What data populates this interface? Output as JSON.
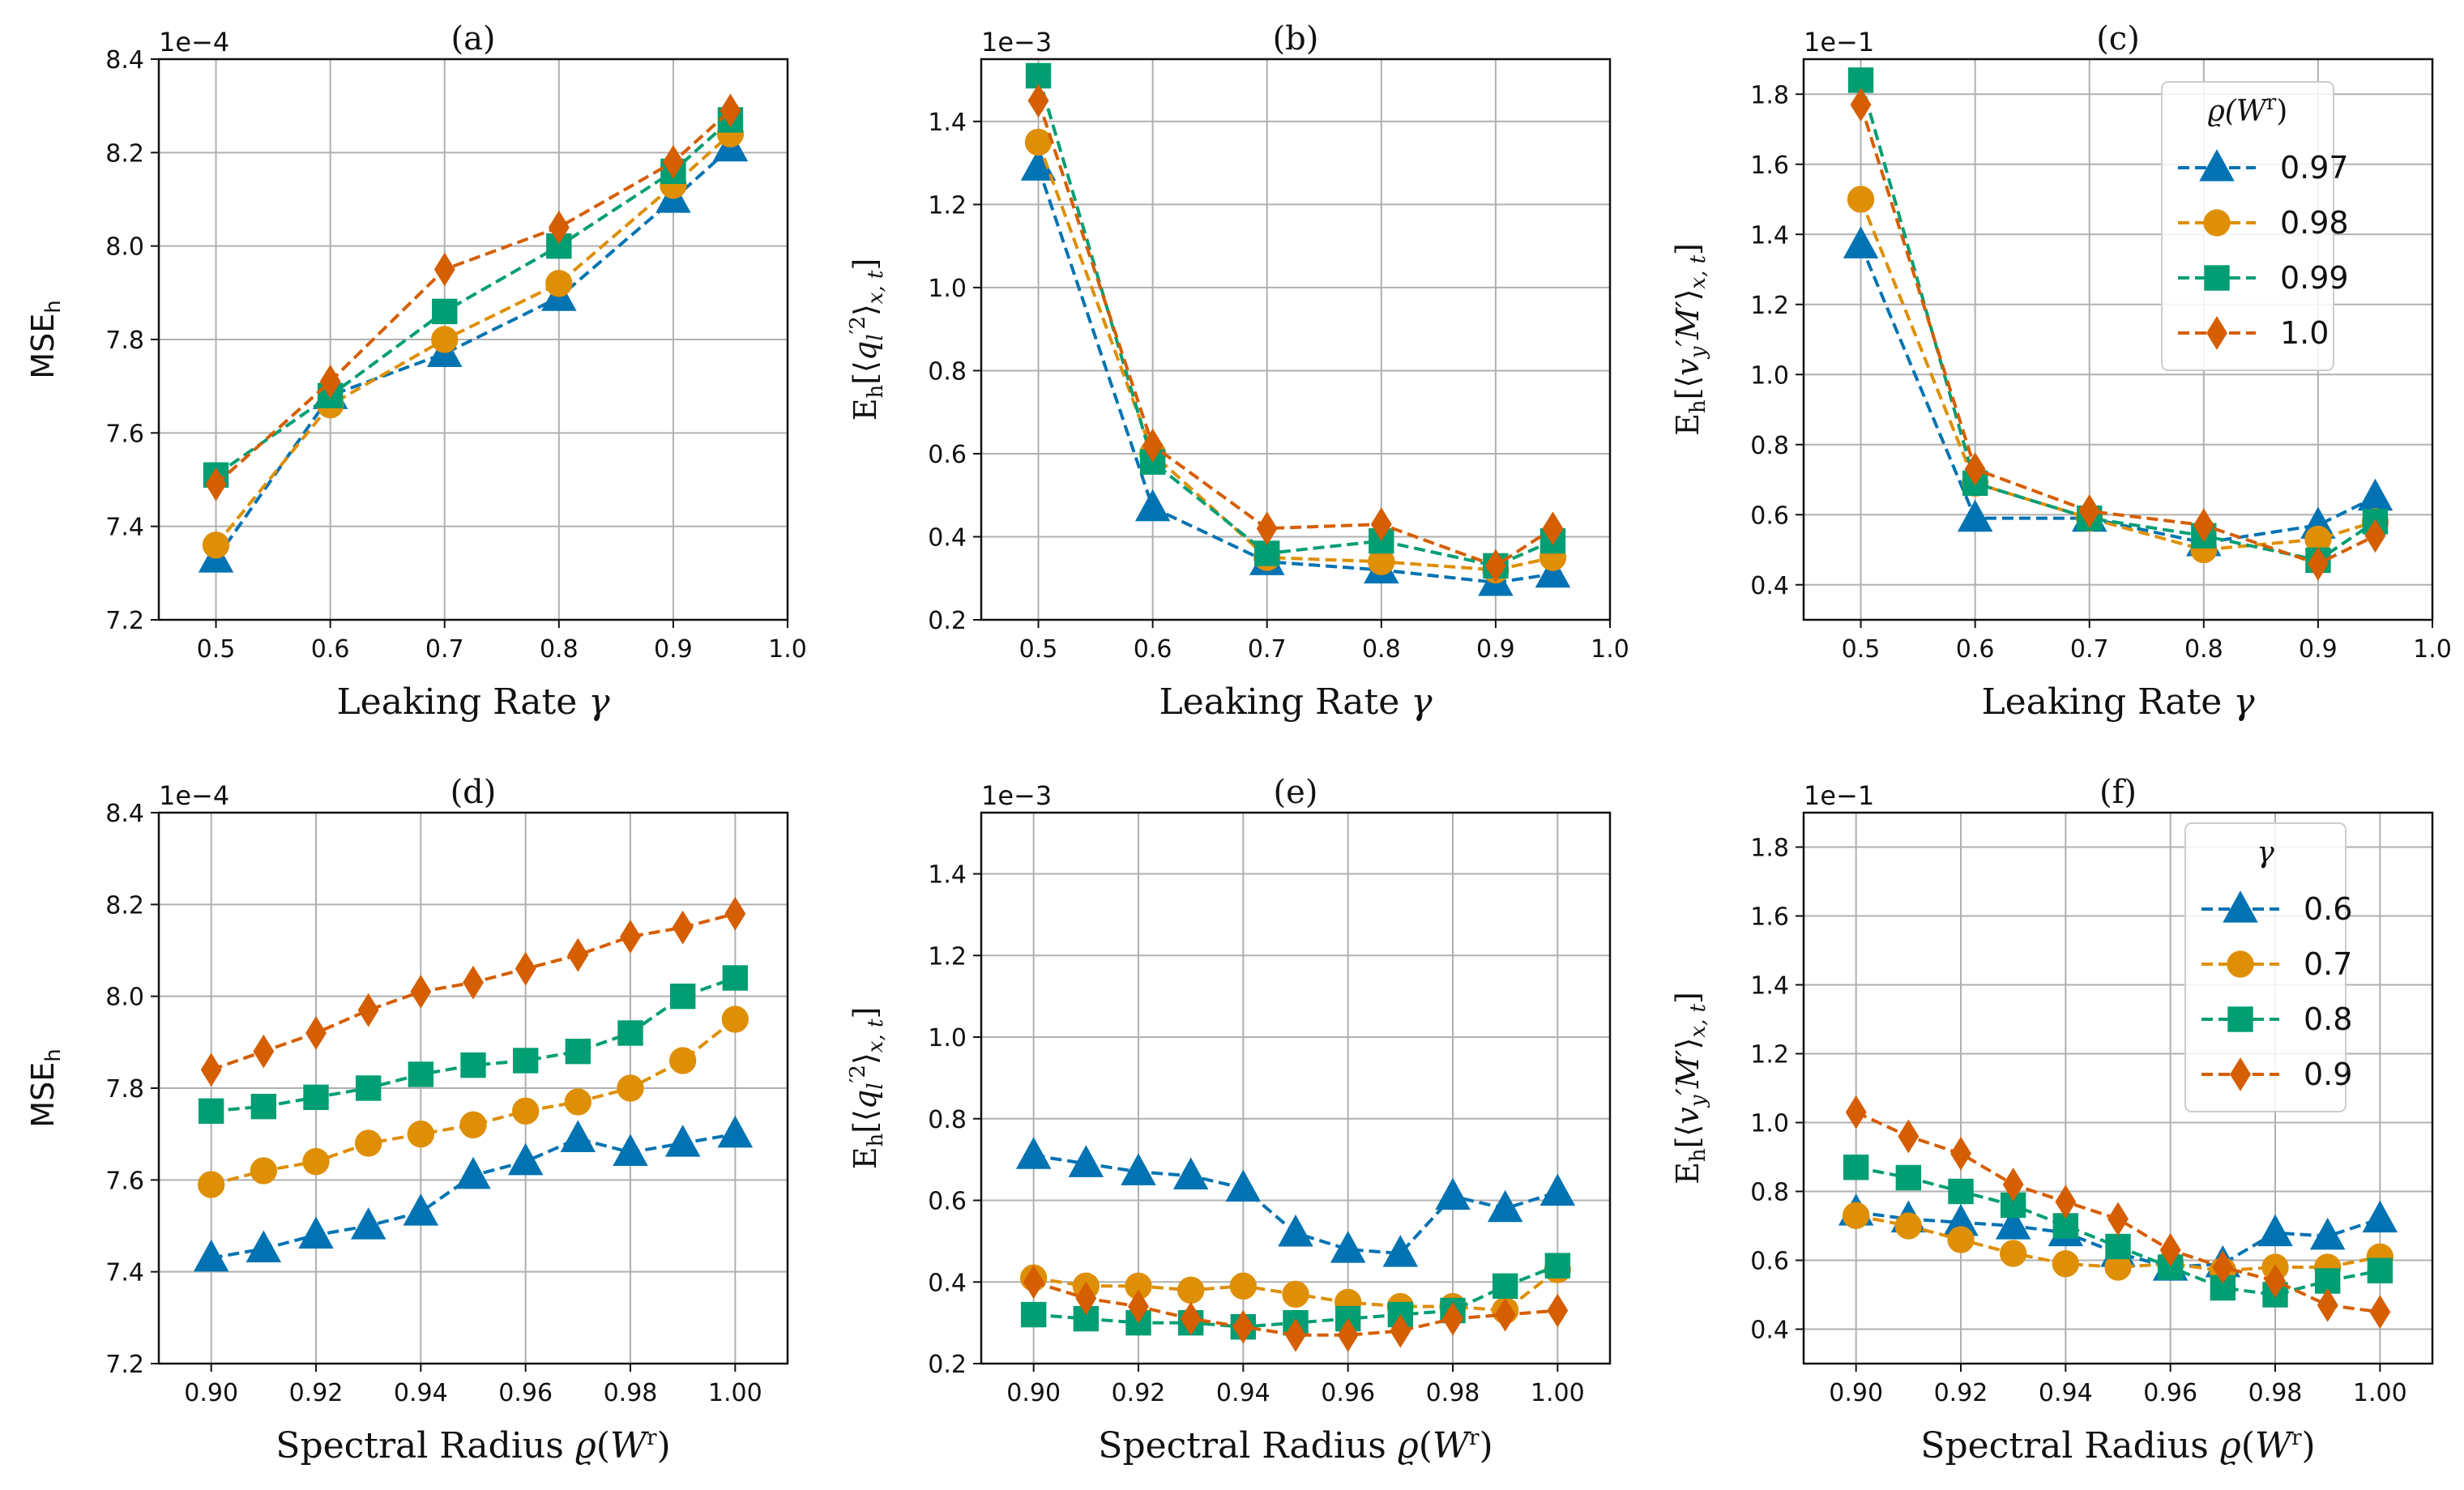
{
  "colors": {
    "blue": "#0173b2",
    "orange": "#de8f05",
    "green": "#029e73",
    "red": "#d55e00",
    "grid": "#b0b0b0"
  },
  "legend_top": {
    "title": "ϱ(Wʳ)",
    "entries": [
      {
        "label": "0.97",
        "marker": "triangle",
        "color": "#0173b2"
      },
      {
        "label": "0.98",
        "marker": "circle",
        "color": "#de8f05"
      },
      {
        "label": "0.99",
        "marker": "square",
        "color": "#029e73"
      },
      {
        "label": "1.0",
        "marker": "diamond",
        "color": "#d55e00"
      }
    ]
  },
  "legend_bottom": {
    "title": "γ",
    "entries": [
      {
        "label": "0.6",
        "marker": "triangle",
        "color": "#0173b2"
      },
      {
        "label": "0.7",
        "marker": "circle",
        "color": "#de8f05"
      },
      {
        "label": "0.8",
        "marker": "square",
        "color": "#029e73"
      },
      {
        "label": "0.9",
        "marker": "diamond",
        "color": "#d55e00"
      }
    ]
  },
  "chart_data": [
    {
      "type": "line",
      "title": "(a)",
      "xlabel": "Leaking Rate γ",
      "ylabel": "MSE_h",
      "offset_text": "1e−4",
      "xlim": [
        0.45,
        1.0
      ],
      "ylim": [
        7.2,
        8.4
      ],
      "xticks": [
        "0.5",
        "0.6",
        "0.7",
        "0.8",
        "0.9",
        "1.0"
      ],
      "yticks": [
        "7.2",
        "7.4",
        "7.6",
        "7.8",
        "8.0",
        "8.2",
        "8.4"
      ],
      "x": [
        0.5,
        0.6,
        0.7,
        0.8,
        0.9,
        0.95
      ],
      "series": [
        {
          "name": "0.97",
          "marker": "triangle",
          "color": "#0173b2",
          "values": [
            7.33,
            7.68,
            7.77,
            7.89,
            8.1,
            8.21
          ]
        },
        {
          "name": "0.98",
          "marker": "circle",
          "color": "#de8f05",
          "values": [
            7.36,
            7.66,
            7.8,
            7.92,
            8.13,
            8.24
          ]
        },
        {
          "name": "0.99",
          "marker": "square",
          "color": "#029e73",
          "values": [
            7.51,
            7.68,
            7.86,
            8.0,
            8.16,
            8.27
          ]
        },
        {
          "name": "1.0",
          "marker": "diamond",
          "color": "#d55e00",
          "values": [
            7.49,
            7.71,
            7.95,
            8.04,
            8.18,
            8.29
          ]
        }
      ]
    },
    {
      "type": "line",
      "title": "(b)",
      "xlabel": "Leaking Rate γ",
      "ylabel": "E_h[⟨q_l'^2⟩_x,t]",
      "offset_text": "1e−3",
      "xlim": [
        0.45,
        1.0
      ],
      "ylim": [
        0.2,
        1.55
      ],
      "xticks": [
        "0.5",
        "0.6",
        "0.7",
        "0.8",
        "0.9",
        "1.0"
      ],
      "yticks": [
        "0.2",
        "0.4",
        "0.6",
        "0.8",
        "1.0",
        "1.2",
        "1.4"
      ],
      "x": [
        0.5,
        0.6,
        0.7,
        0.8,
        0.9,
        0.95
      ],
      "series": [
        {
          "name": "0.97",
          "marker": "triangle",
          "color": "#0173b2",
          "values": [
            1.29,
            0.47,
            0.34,
            0.32,
            0.29,
            0.31
          ]
        },
        {
          "name": "0.98",
          "marker": "circle",
          "color": "#de8f05",
          "values": [
            1.35,
            0.6,
            0.35,
            0.34,
            0.32,
            0.35
          ]
        },
        {
          "name": "0.99",
          "marker": "square",
          "color": "#029e73",
          "values": [
            1.51,
            0.58,
            0.36,
            0.39,
            0.33,
            0.39
          ]
        },
        {
          "name": "1.0",
          "marker": "diamond",
          "color": "#d55e00",
          "values": [
            1.45,
            0.62,
            0.42,
            0.43,
            0.33,
            0.42
          ]
        }
      ]
    },
    {
      "type": "line",
      "title": "(c)",
      "xlabel": "Leaking Rate γ",
      "ylabel": "E_h[⟨v_y' M'⟩_x,t]",
      "offset_text": "1e−1",
      "xlim": [
        0.45,
        1.0
      ],
      "ylim": [
        0.3,
        1.9
      ],
      "xticks": [
        "0.5",
        "0.6",
        "0.7",
        "0.8",
        "0.9",
        "1.0"
      ],
      "yticks": [
        "0.4",
        "0.6",
        "0.8",
        "1.0",
        "1.2",
        "1.4",
        "1.6",
        "1.8"
      ],
      "x": [
        0.5,
        0.6,
        0.7,
        0.8,
        0.9,
        0.95
      ],
      "series": [
        {
          "name": "0.97",
          "marker": "triangle",
          "color": "#0173b2",
          "values": [
            1.37,
            0.59,
            0.59,
            0.52,
            0.57,
            0.65
          ]
        },
        {
          "name": "0.98",
          "marker": "circle",
          "color": "#de8f05",
          "values": [
            1.5,
            0.69,
            0.59,
            0.5,
            0.53,
            0.58
          ]
        },
        {
          "name": "0.99",
          "marker": "square",
          "color": "#029e73",
          "values": [
            1.84,
            0.69,
            0.59,
            0.54,
            0.47,
            0.58
          ]
        },
        {
          "name": "1.0",
          "marker": "diamond",
          "color": "#d55e00",
          "values": [
            1.77,
            0.73,
            0.61,
            0.57,
            0.46,
            0.54
          ]
        }
      ]
    },
    {
      "type": "line",
      "title": "(d)",
      "xlabel": "Spectral Radius ϱ(Wʳ)",
      "ylabel": "MSE_h",
      "offset_text": "1e−4",
      "xlim": [
        0.89,
        1.01
      ],
      "ylim": [
        7.2,
        8.4
      ],
      "xticks": [
        "0.90",
        "0.92",
        "0.94",
        "0.96",
        "0.98",
        "1.00"
      ],
      "yticks": [
        "7.2",
        "7.4",
        "7.6",
        "7.8",
        "8.0",
        "8.2",
        "8.4"
      ],
      "x": [
        0.9,
        0.91,
        0.92,
        0.93,
        0.94,
        0.95,
        0.96,
        0.97,
        0.98,
        0.99,
        1.0
      ],
      "series": [
        {
          "name": "0.6",
          "marker": "triangle",
          "color": "#0173b2",
          "values": [
            7.43,
            7.45,
            7.48,
            7.5,
            7.53,
            7.61,
            7.64,
            7.69,
            7.66,
            7.68,
            7.7
          ]
        },
        {
          "name": "0.7",
          "marker": "circle",
          "color": "#de8f05",
          "values": [
            7.59,
            7.62,
            7.64,
            7.68,
            7.7,
            7.72,
            7.75,
            7.77,
            7.8,
            7.86,
            7.95
          ]
        },
        {
          "name": "0.8",
          "marker": "square",
          "color": "#029e73",
          "values": [
            7.75,
            7.76,
            7.78,
            7.8,
            7.83,
            7.85,
            7.86,
            7.88,
            7.92,
            8.0,
            8.04
          ]
        },
        {
          "name": "0.9",
          "marker": "diamond",
          "color": "#d55e00",
          "values": [
            7.84,
            7.88,
            7.92,
            7.97,
            8.01,
            8.03,
            8.06,
            8.09,
            8.13,
            8.15,
            8.18
          ]
        }
      ]
    },
    {
      "type": "line",
      "title": "(e)",
      "xlabel": "Spectral Radius ϱ(Wʳ)",
      "ylabel": "E_h[⟨q_l'^2⟩_x,t]",
      "offset_text": "1e−3",
      "xlim": [
        0.89,
        1.01
      ],
      "ylim": [
        0.2,
        1.55
      ],
      "xticks": [
        "0.90",
        "0.92",
        "0.94",
        "0.96",
        "0.98",
        "1.00"
      ],
      "yticks": [
        "0.2",
        "0.4",
        "0.6",
        "0.8",
        "1.0",
        "1.2",
        "1.4"
      ],
      "x": [
        0.9,
        0.91,
        0.92,
        0.93,
        0.94,
        0.95,
        0.96,
        0.97,
        0.98,
        0.99,
        1.0
      ],
      "series": [
        {
          "name": "0.6",
          "marker": "triangle",
          "color": "#0173b2",
          "values": [
            0.71,
            0.69,
            0.67,
            0.66,
            0.63,
            0.52,
            0.48,
            0.47,
            0.61,
            0.58,
            0.62
          ]
        },
        {
          "name": "0.7",
          "marker": "circle",
          "color": "#de8f05",
          "values": [
            0.41,
            0.39,
            0.39,
            0.38,
            0.39,
            0.37,
            0.35,
            0.34,
            0.34,
            0.33,
            0.43
          ]
        },
        {
          "name": "0.8",
          "marker": "square",
          "color": "#029e73",
          "values": [
            0.32,
            0.31,
            0.3,
            0.3,
            0.29,
            0.3,
            0.31,
            0.32,
            0.33,
            0.39,
            0.44
          ]
        },
        {
          "name": "0.9",
          "marker": "diamond",
          "color": "#d55e00",
          "values": [
            0.4,
            0.36,
            0.34,
            0.31,
            0.29,
            0.27,
            0.27,
            0.28,
            0.31,
            0.32,
            0.33
          ]
        }
      ]
    },
    {
      "type": "line",
      "title": "(f)",
      "xlabel": "Spectral Radius ϱ(Wʳ)",
      "ylabel": "E_h[⟨v_y' M'⟩_x,t]",
      "offset_text": "1e−1",
      "xlim": [
        0.89,
        1.01
      ],
      "ylim": [
        0.3,
        1.9
      ],
      "xticks": [
        "0.90",
        "0.92",
        "0.94",
        "0.96",
        "0.98",
        "1.00"
      ],
      "yticks": [
        "0.4",
        "0.6",
        "0.8",
        "1.0",
        "1.2",
        "1.4",
        "1.6",
        "1.8"
      ],
      "x": [
        0.9,
        0.91,
        0.92,
        0.93,
        0.94,
        0.95,
        0.96,
        0.97,
        0.98,
        0.99,
        1.0
      ],
      "series": [
        {
          "name": "0.6",
          "marker": "triangle",
          "color": "#0173b2",
          "values": [
            0.74,
            0.72,
            0.71,
            0.7,
            0.68,
            0.62,
            0.58,
            0.59,
            0.68,
            0.67,
            0.72
          ]
        },
        {
          "name": "0.7",
          "marker": "circle",
          "color": "#de8f05",
          "values": [
            0.73,
            0.7,
            0.66,
            0.62,
            0.59,
            0.58,
            0.59,
            0.57,
            0.58,
            0.58,
            0.61
          ]
        },
        {
          "name": "0.8",
          "marker": "square",
          "color": "#029e73",
          "values": [
            0.87,
            0.84,
            0.8,
            0.76,
            0.7,
            0.64,
            0.58,
            0.52,
            0.5,
            0.54,
            0.57
          ]
        },
        {
          "name": "0.9",
          "marker": "diamond",
          "color": "#d55e00",
          "values": [
            1.03,
            0.96,
            0.91,
            0.82,
            0.77,
            0.72,
            0.63,
            0.58,
            0.54,
            0.47,
            0.45
          ]
        }
      ]
    }
  ]
}
